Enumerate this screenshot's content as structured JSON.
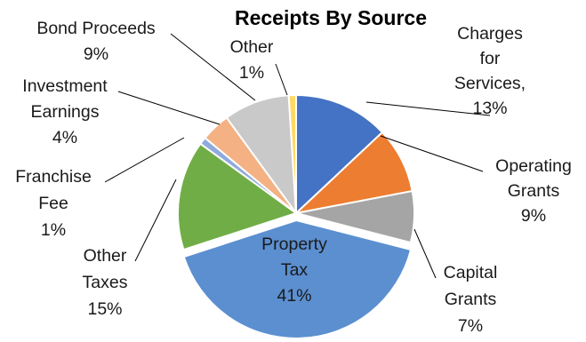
{
  "chart_data": {
    "type": "pie",
    "title": "Receipts By Source",
    "slices": [
      {
        "label": [
          "Charges",
          "for",
          "Services,",
          "13%"
        ],
        "value": 13,
        "color": "#4472c4"
      },
      {
        "label": [
          "Operating",
          "Grants",
          "9%"
        ],
        "value": 9,
        "color": "#ed7d31"
      },
      {
        "label": [
          "Capital",
          "Grants",
          "7%"
        ],
        "value": 7,
        "color": "#a5a5a5"
      },
      {
        "label": [
          "Property",
          "Tax",
          "41%"
        ],
        "value": 41,
        "color": "#5b8fd0"
      },
      {
        "label": [
          "Other",
          "Taxes",
          "15%"
        ],
        "value": 15,
        "color": "#70ad47"
      },
      {
        "label": [
          "Franchise",
          "Fee",
          "1%"
        ],
        "value": 1,
        "color": "#8faadc"
      },
      {
        "label": [
          "Investment",
          "Earnings",
          "4%"
        ],
        "value": 4,
        "color": "#f4b183"
      },
      {
        "label": [
          "Bond Proceeds",
          "9%"
        ],
        "value": 9,
        "color": "#c9c9c9"
      },
      {
        "label": [
          "Other",
          "1%"
        ],
        "value": 1,
        "color": "#ffd966"
      }
    ],
    "start_angle_deg": 0,
    "direction": "clockwise",
    "exploded_slice": "Property Tax",
    "legend": "none"
  }
}
